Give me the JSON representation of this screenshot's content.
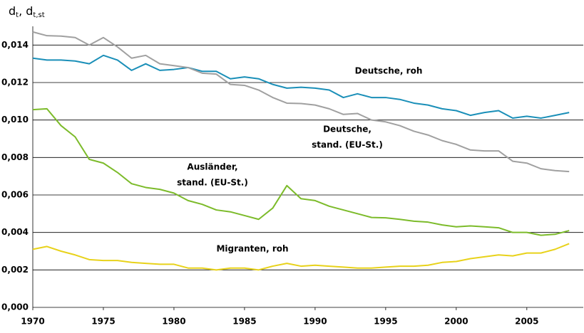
{
  "chart_data": {
    "type": "line",
    "y_label": [
      "d",
      "t",
      ", d",
      "t,st"
    ],
    "x": [
      1970,
      1971,
      1972,
      1973,
      1974,
      1975,
      1976,
      1977,
      1978,
      1979,
      1980,
      1981,
      1982,
      1983,
      1984,
      1985,
      1986,
      1987,
      1988,
      1989,
      1990,
      1991,
      1992,
      1993,
      1994,
      1995,
      1996,
      1997,
      1998,
      1999,
      2000,
      2001,
      2002,
      2003,
      2004,
      2005,
      2006,
      2007,
      2008
    ],
    "xlim": [
      1970,
      2009
    ],
    "xticks": [
      1970,
      1975,
      1980,
      1985,
      1990,
      1995,
      2000,
      2005
    ],
    "ylim": [
      0,
      0.015
    ],
    "yticks": [
      {
        "value": 0,
        "label": "0,000"
      },
      {
        "value": 0.002,
        "label": "0,002"
      },
      {
        "value": 0.004,
        "label": "0,004"
      },
      {
        "value": 0.006,
        "label": "0,006"
      },
      {
        "value": 0.008,
        "label": "0,008"
      },
      {
        "value": 0.01,
        "label": "0,010"
      },
      {
        "value": 0.012,
        "label": "0,012"
      },
      {
        "value": 0.014,
        "label": "0,014"
      }
    ],
    "grid": true,
    "series": [
      {
        "name": [
          "Deutsche, roh"
        ],
        "color": "#1a8fb8",
        "values": [
          0.0133,
          0.0132,
          0.0132,
          0.01315,
          0.013,
          0.01345,
          0.0132,
          0.01265,
          0.013,
          0.01265,
          0.0127,
          0.0128,
          0.0126,
          0.0126,
          0.0122,
          0.0123,
          0.0122,
          0.0119,
          0.0117,
          0.01175,
          0.0117,
          0.0116,
          0.0112,
          0.0114,
          0.0112,
          0.0112,
          0.0111,
          0.0109,
          0.0108,
          0.0106,
          0.0105,
          0.01025,
          0.0104,
          0.0105,
          0.0101,
          0.0102,
          0.0101,
          0.01025,
          0.0104
        ]
      },
      {
        "name": [
          "Deutsche,",
          "stand. (EU-St.)"
        ],
        "color": "#a0a0a0",
        "values": [
          0.0147,
          0.0145,
          0.01448,
          0.0144,
          0.014,
          0.0144,
          0.0139,
          0.0133,
          0.01345,
          0.013,
          0.0129,
          0.0128,
          0.0125,
          0.01245,
          0.0119,
          0.01185,
          0.0116,
          0.0112,
          0.0109,
          0.01088,
          0.0108,
          0.0106,
          0.0103,
          0.01035,
          0.01,
          0.0099,
          0.0097,
          0.0094,
          0.0092,
          0.0089,
          0.0087,
          0.0084,
          0.00835,
          0.00835,
          0.0078,
          0.0077,
          0.0074,
          0.0073,
          0.00725
        ]
      },
      {
        "name": [
          "Ausländer,",
          "stand. (EU-St.)"
        ],
        "color": "#7cbb2a",
        "values": [
          0.01055,
          0.0106,
          0.0097,
          0.0091,
          0.0079,
          0.0077,
          0.0072,
          0.0066,
          0.0064,
          0.0063,
          0.0061,
          0.0057,
          0.0055,
          0.0052,
          0.0051,
          0.0049,
          0.0047,
          0.0053,
          0.0065,
          0.0058,
          0.0057,
          0.0054,
          0.0052,
          0.005,
          0.0048,
          0.00478,
          0.0047,
          0.0046,
          0.00455,
          0.0044,
          0.0043,
          0.00435,
          0.0043,
          0.00425,
          0.004,
          0.004,
          0.00385,
          0.0039,
          0.0041
        ]
      },
      {
        "name": [
          "Migranten, roh"
        ],
        "color": "#e8d21a",
        "values": [
          0.0031,
          0.00325,
          0.003,
          0.0028,
          0.00255,
          0.0025,
          0.0025,
          0.0024,
          0.00235,
          0.0023,
          0.0023,
          0.0021,
          0.0021,
          0.002,
          0.0021,
          0.0021,
          0.002,
          0.0022,
          0.00235,
          0.0022,
          0.00225,
          0.0022,
          0.00215,
          0.0021,
          0.0021,
          0.00215,
          0.0022,
          0.0022,
          0.00225,
          0.0024,
          0.00245,
          0.0026,
          0.0027,
          0.0028,
          0.00275,
          0.0029,
          0.0029,
          0.0031,
          0.0034
        ]
      }
    ]
  }
}
